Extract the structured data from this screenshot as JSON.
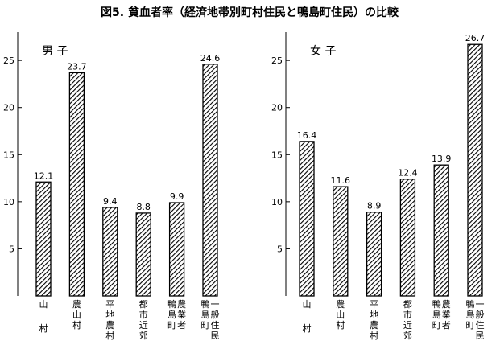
{
  "title": "図5. 貧血者率（経済地帯別町村住民と鴨島町住民）の比較",
  "chart_data": [
    {
      "type": "bar",
      "title": "男 子",
      "categories": [
        "山村",
        "農山村",
        "平地農村",
        "都市近郊",
        "鴨島町農業者",
        "鴨島町一般住民"
      ],
      "values": [
        12.1,
        23.7,
        9.4,
        8.8,
        9.9,
        24.6
      ],
      "ylim": [
        0,
        28
      ],
      "yticks": [
        5,
        10,
        15,
        20,
        25
      ],
      "color": "#000000",
      "hatch": true
    },
    {
      "type": "bar",
      "title": "女 子",
      "categories": [
        "山村",
        "農山村",
        "平地農村",
        "都市近郊",
        "鴨島町農業者",
        "鴨島町一般住民"
      ],
      "values": [
        16.4,
        11.6,
        8.9,
        12.4,
        13.9,
        26.7
      ],
      "ylim": [
        0,
        28
      ],
      "yticks": [
        5,
        10,
        15,
        20,
        25
      ],
      "color": "#000000",
      "hatch": true
    }
  ]
}
